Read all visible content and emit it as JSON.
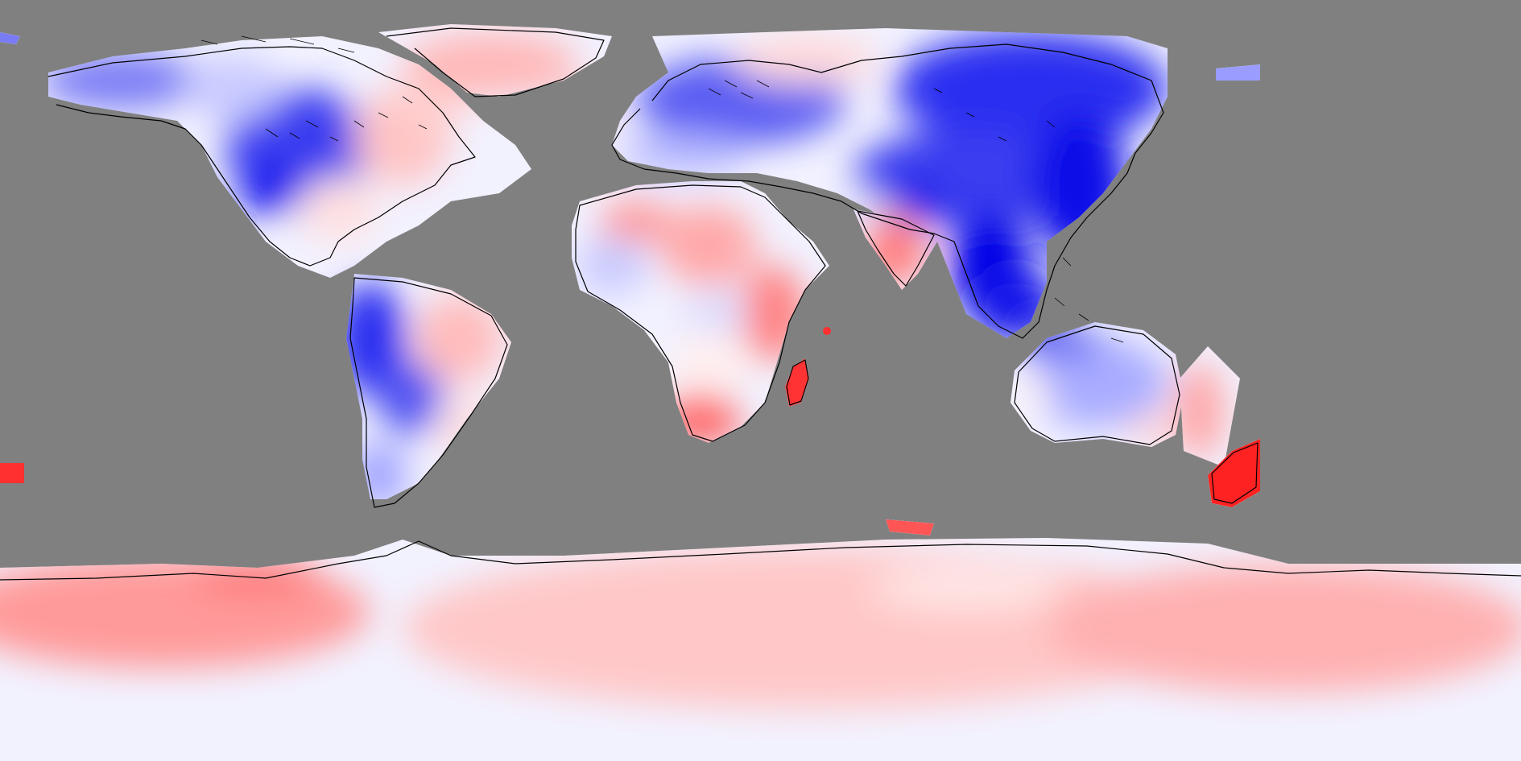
{
  "map": {
    "projection": "equirectangular",
    "background_color": "#808080",
    "ocean_mask_color": "#808080",
    "coastline_color": "#000000",
    "colormap": {
      "type": "diverging",
      "negative_color": "#0000ff",
      "neutral_color": "#ffffff",
      "positive_color": "#ff0000"
    },
    "regions": [
      {
        "name": "greenland",
        "tone": "warm-light"
      },
      {
        "name": "north-america-west",
        "tone": "cool-strong"
      },
      {
        "name": "north-america-east",
        "tone": "warm-light"
      },
      {
        "name": "south-america-west",
        "tone": "cool-strong"
      },
      {
        "name": "south-america-east",
        "tone": "warm-light"
      },
      {
        "name": "europe",
        "tone": "cool-medium"
      },
      {
        "name": "siberia",
        "tone": "cool-strong"
      },
      {
        "name": "china-southeast-asia",
        "tone": "cool-strong"
      },
      {
        "name": "india",
        "tone": "warm-medium"
      },
      {
        "name": "africa",
        "tone": "mixed"
      },
      {
        "name": "madagascar",
        "tone": "warm-strong"
      },
      {
        "name": "australia",
        "tone": "cool-light"
      },
      {
        "name": "new-zealand",
        "tone": "warm-strong"
      },
      {
        "name": "antarctica",
        "tone": "warm-light"
      }
    ]
  }
}
